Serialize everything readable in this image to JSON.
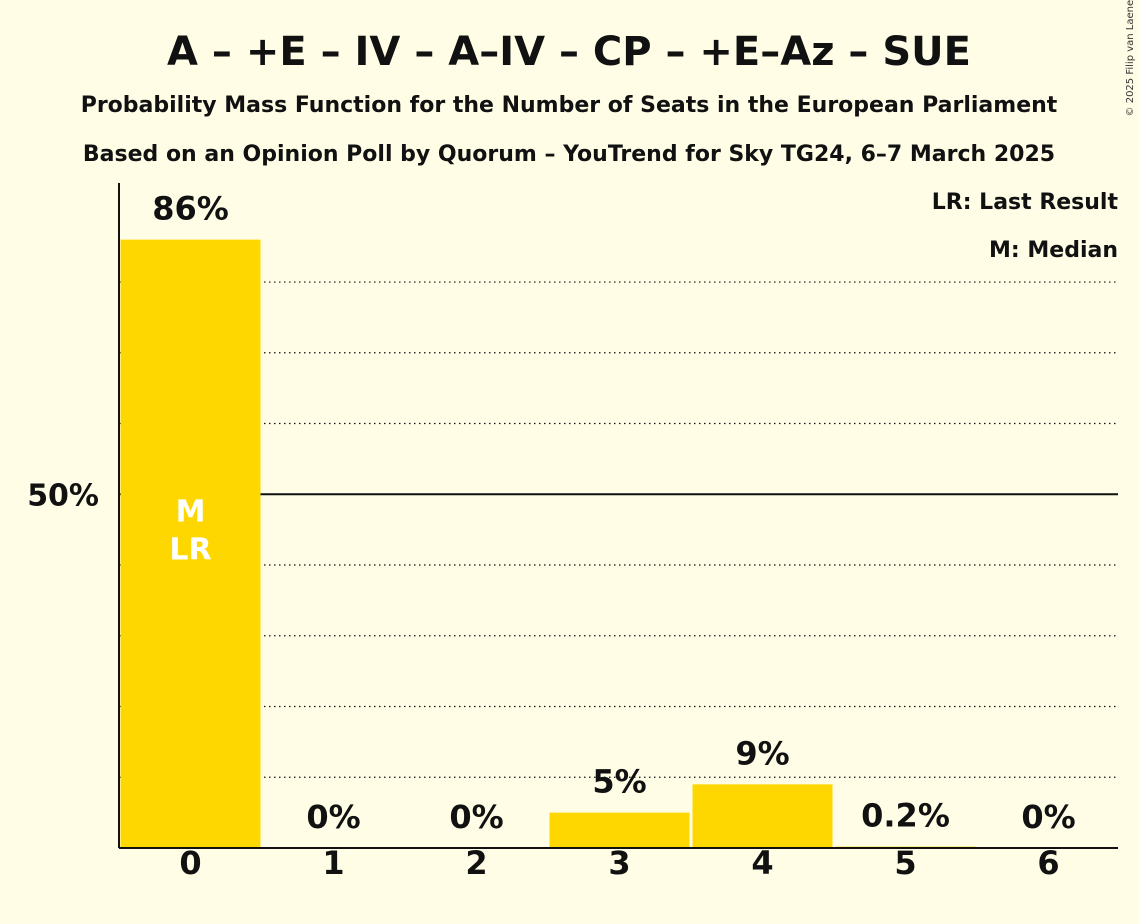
{
  "colors": {
    "background": "#FFFDE6",
    "bar": "#FFD700",
    "axis": "#111111",
    "marker_text": "#FFFFFF"
  },
  "chart_data": {
    "type": "bar",
    "title": "A – +E – IV – A–IV – CP – +E–Az – SUE",
    "subtitle": "Probability Mass Function for the Number of Seats in the European Parliament",
    "subtitle2": "Based on an Opinion Poll by Quorum – YouTrend for Sky TG24, 6–7 March 2025",
    "copyright": "© 2025 Filip van Laenen",
    "legend": {
      "position": "top-right",
      "entries": [
        "LR: Last Result",
        "M: Median"
      ]
    },
    "xlabel": "",
    "ylabel": "",
    "categories": [
      "0",
      "1",
      "2",
      "3",
      "4",
      "5",
      "6"
    ],
    "values": [
      86,
      0,
      0,
      5,
      9,
      0.2,
      0
    ],
    "value_labels": [
      "86%",
      "0%",
      "0%",
      "5%",
      "9%",
      "0.2%",
      "0%"
    ],
    "ylim": [
      0,
      94
    ],
    "y_ticks": [
      {
        "value": 50,
        "label": "50%"
      }
    ],
    "gridlines": [
      10,
      20,
      30,
      40,
      60,
      70,
      80
    ],
    "gridline_style": "dotted",
    "major_line": 50,
    "bar_markers": [
      {
        "category": "0",
        "lines": [
          "M",
          "LR"
        ]
      }
    ]
  }
}
